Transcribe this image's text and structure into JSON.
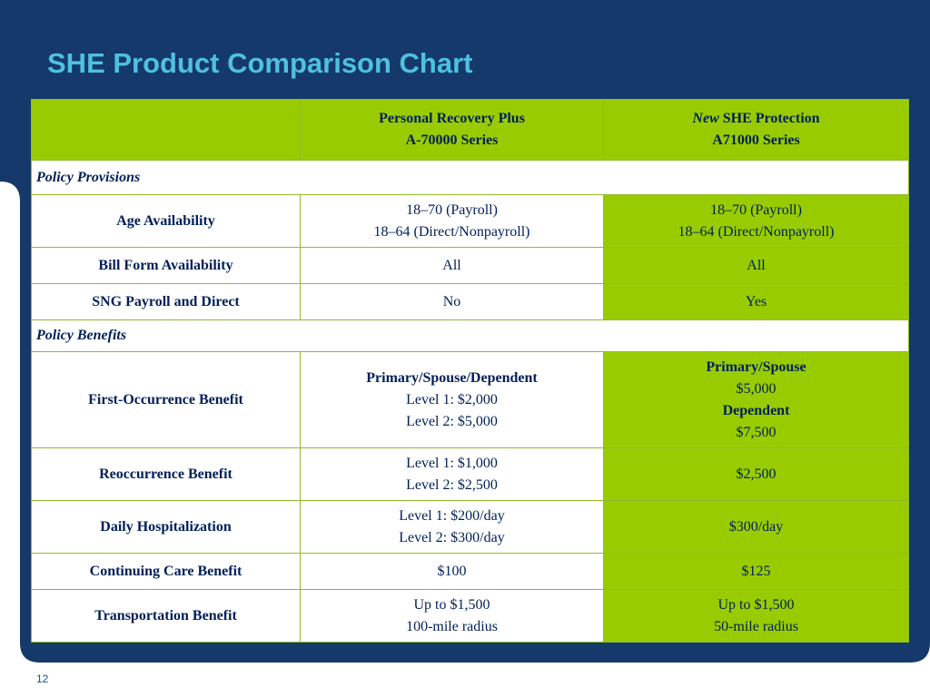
{
  "slide": {
    "title": "SHE Product Comparison Chart",
    "page_number": "12"
  },
  "colors": {
    "navy": "#14396a",
    "title": "#4fc1e0",
    "green": "#99cc00",
    "text": "#001f5b"
  },
  "table": {
    "header": {
      "col1": {
        "line1": "Personal Recovery Plus",
        "line2": "A-70000 Series"
      },
      "col2": {
        "line1_italic": "New",
        "line1_rest": " SHE Protection",
        "line2": "A71000 Series"
      }
    },
    "sections": {
      "provisions": "Policy Provisions",
      "benefits": "Policy Benefits"
    },
    "rows": {
      "age": {
        "label": "Age Availability",
        "col1": [
          "18–70 (Payroll)",
          "18–64 (Direct/Nonpayroll)"
        ],
        "col2": [
          "18–70 (Payroll)",
          "18–64 (Direct/Nonpayroll)"
        ]
      },
      "bill": {
        "label": "Bill Form Availability",
        "col1": "All",
        "col2": "All"
      },
      "sng": {
        "label": "SNG Payroll and Direct",
        "col1": "No",
        "col2": "Yes"
      },
      "first": {
        "label": "First-Occurrence Benefit",
        "col1": {
          "heading": "Primary/Spouse/Dependent",
          "lines": [
            "Level 1:  $2,000",
            "Level 2:  $5,000"
          ]
        },
        "col2": {
          "heading1": "Primary/Spouse",
          "value1": "$5,000",
          "heading2": "Dependent",
          "value2": "$7,500"
        }
      },
      "reocc": {
        "label": "Reoccurrence Benefit",
        "col1": [
          "Level 1:  $1,000",
          "Level 2:  $2,500"
        ],
        "col2": "$2,500"
      },
      "daily": {
        "label": "Daily Hospitalization",
        "col1": [
          "Level 1:  $200/day",
          "Level 2:  $300/day"
        ],
        "col2": "$300/day"
      },
      "cont": {
        "label": "Continuing Care Benefit",
        "col1": "$100",
        "col2": "$125"
      },
      "trans": {
        "label": "Transportation Benefit",
        "col1": [
          "Up to $1,500",
          "100-mile radius"
        ],
        "col2": [
          "Up to $1,500",
          "50-mile radius"
        ]
      }
    }
  }
}
